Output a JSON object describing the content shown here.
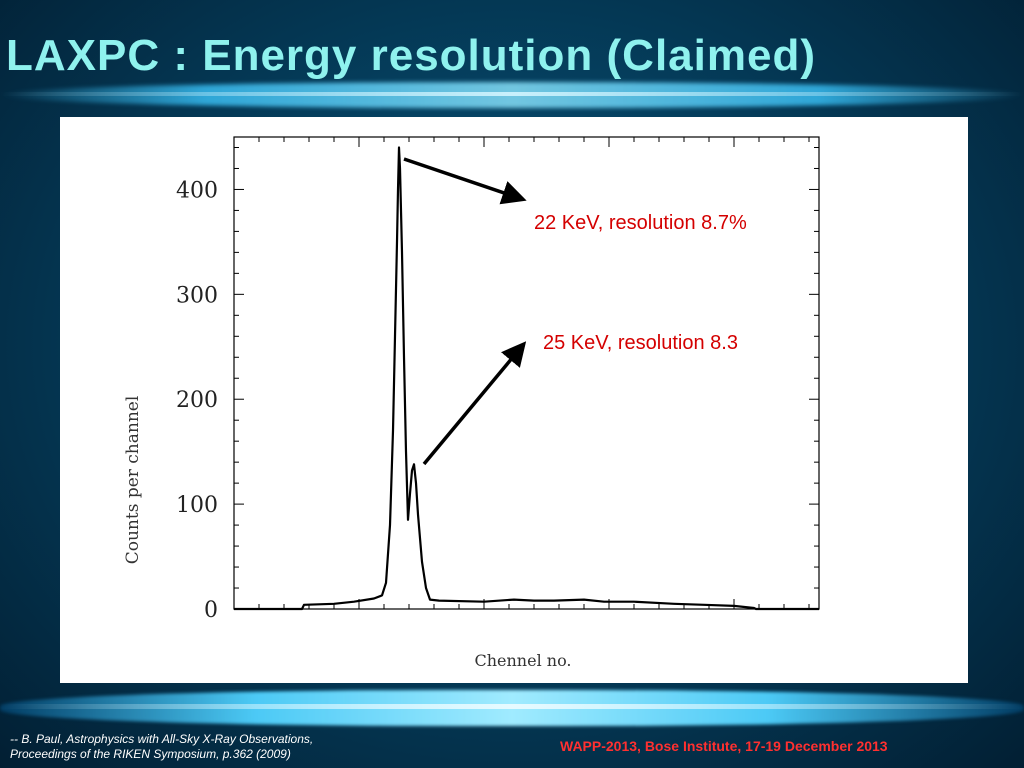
{
  "slide": {
    "title": "LAXPC : Energy resolution (Claimed)",
    "citation_line1": "-- B. Paul,  Astrophysics with All-Sky X-Ray Observations,",
    "citation_line2": " Proceedings of the RIKEN Symposium, p.362 (2009)",
    "conference": "WAPP-2013, Bose Institute, 17-19 December 2013",
    "title_color": "#8ff2ee",
    "annotation_color": "#d40000"
  },
  "chart_data": {
    "type": "line",
    "title": "",
    "xlabel": "Chennel no.",
    "ylabel": "Counts per channel",
    "ylim": [
      0,
      450
    ],
    "yticks": [
      0,
      100,
      200,
      300,
      400
    ],
    "ytick_labels": [
      "0",
      "100",
      "200",
      "300",
      "400"
    ],
    "grid": false,
    "series": [
      {
        "points": [
          [
            0,
            0
          ],
          [
            68,
            0
          ],
          [
            70,
            4
          ],
          [
            100,
            5
          ],
          [
            120,
            7
          ],
          [
            140,
            10
          ],
          [
            148,
            13
          ],
          [
            152,
            25
          ],
          [
            156,
            80
          ],
          [
            159,
            170
          ],
          [
            161,
            260
          ],
          [
            163,
            350
          ],
          [
            164,
            400
          ],
          [
            165,
            440
          ],
          [
            166,
            420
          ],
          [
            168,
            340
          ],
          [
            170,
            240
          ],
          [
            172,
            150
          ],
          [
            174,
            85
          ],
          [
            176,
            110
          ],
          [
            178,
            132
          ],
          [
            180,
            138
          ],
          [
            182,
            120
          ],
          [
            184,
            90
          ],
          [
            188,
            45
          ],
          [
            192,
            20
          ],
          [
            196,
            9
          ],
          [
            205,
            8
          ],
          [
            250,
            7
          ],
          [
            280,
            9
          ],
          [
            300,
            8
          ],
          [
            320,
            8
          ],
          [
            350,
            9
          ],
          [
            370,
            7
          ],
          [
            400,
            7
          ],
          [
            440,
            5
          ],
          [
            470,
            4
          ],
          [
            500,
            3
          ],
          [
            520,
            1
          ],
          [
            522,
            0
          ],
          [
            585,
            0
          ]
        ]
      }
    ],
    "annotations": [
      {
        "text": "22 KeV, resolution 8.7%",
        "arrow_to": [
          168,
          432
        ]
      },
      {
        "text": "25 KeV, resolution 8.3",
        "arrow_to": [
          188,
          140
        ]
      }
    ]
  }
}
